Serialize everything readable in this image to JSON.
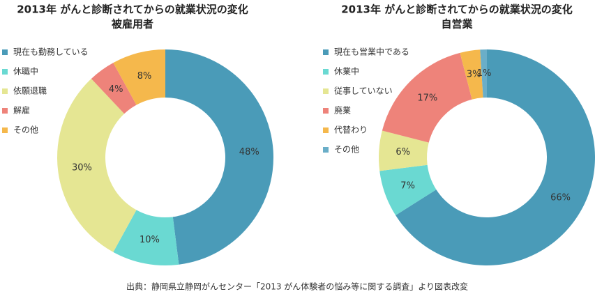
{
  "chart_data": [
    {
      "type": "donut",
      "title": "2013年 がんと診断されてからの就業状況の変化",
      "subtitle": "被雇用者",
      "categories": [
        "現在も勤務している",
        "休職中",
        "依願退職",
        "解雇",
        "その他"
      ],
      "values": [
        48,
        10,
        30,
        4,
        8
      ],
      "value_labels": [
        "48%",
        "10%",
        "30%",
        "4%",
        "8%"
      ],
      "colors": [
        "#4a9bb8",
        "#6ad9d2",
        "#e5e693",
        "#ee837a",
        "#f5b84c"
      ]
    },
    {
      "type": "donut",
      "title": "2013年 がんと診断されてからの就業状況の変化",
      "subtitle": "自営業",
      "categories": [
        "現在も営業中である",
        "休業中",
        "従事していない",
        "廃業",
        "代替わり",
        "その他"
      ],
      "values": [
        66,
        7,
        6,
        17,
        3,
        1
      ],
      "value_labels": [
        "66%",
        "7%",
        "6%",
        "17%",
        "3%",
        "1%"
      ],
      "colors": [
        "#4a9bb8",
        "#6ad9d2",
        "#e5e693",
        "#ee837a",
        "#f5b84c",
        "#6aaec8"
      ]
    }
  ],
  "source": "出典：静岡県立静岡がんセンター「2013 がん体験者の悩み等に関する調査」より図表改変"
}
